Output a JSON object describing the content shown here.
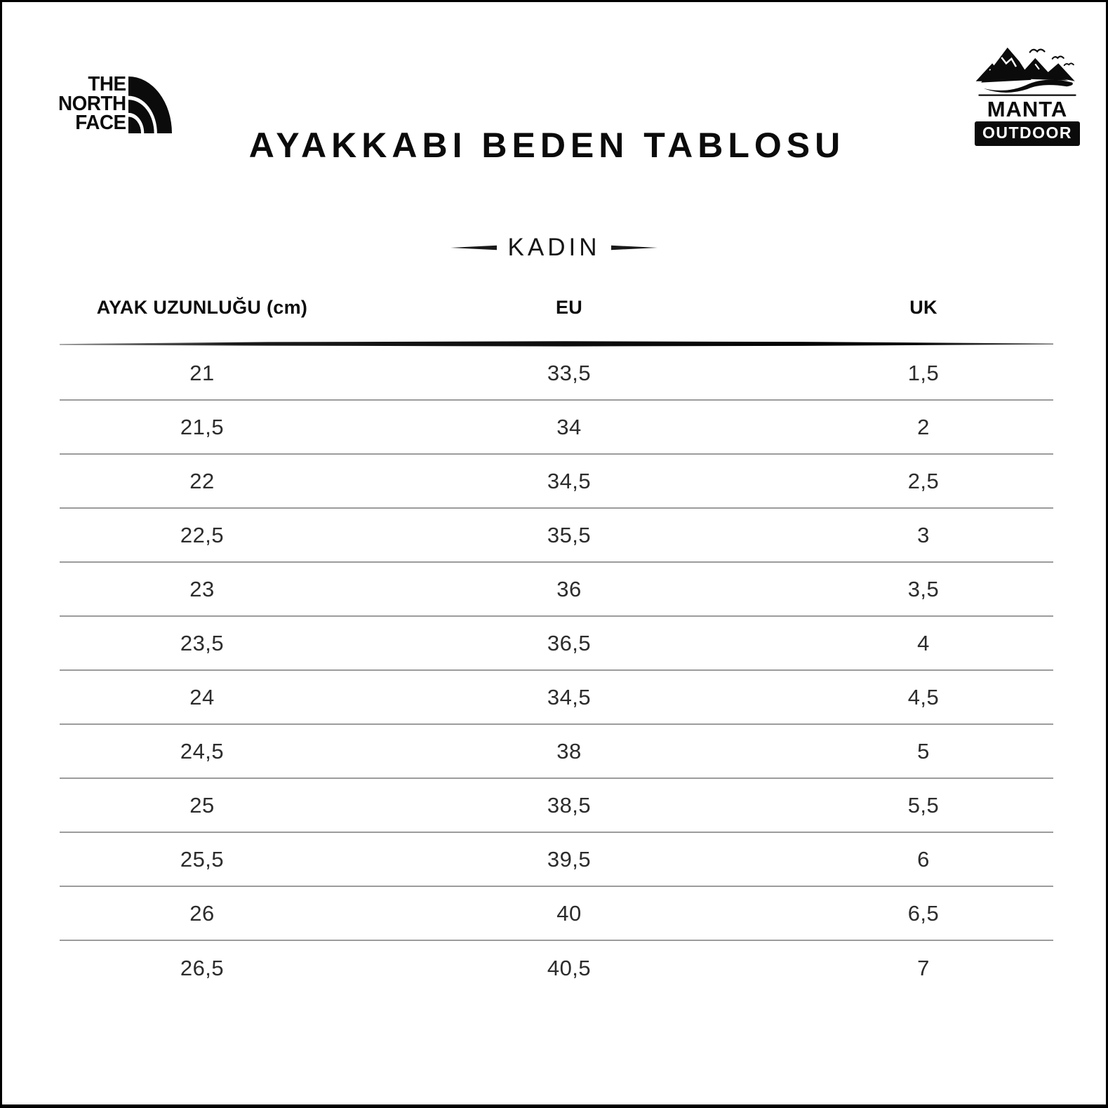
{
  "header": {
    "title": "AYAKKABI BEDEN TABLOSU",
    "north_face_logo": {
      "line1": "THE",
      "line2": "NORTH",
      "line3": "FACE"
    },
    "manta_logo": {
      "name": "MANTA",
      "subtitle": "OUTDOOR"
    }
  },
  "section": {
    "label": "KADIN"
  },
  "table": {
    "columns": [
      "AYAK UZUNLUĞU (cm)",
      "EU",
      "UK"
    ],
    "rows": [
      [
        "21",
        "33,5",
        "1,5"
      ],
      [
        "21,5",
        "34",
        "2"
      ],
      [
        "22",
        "34,5",
        "2,5"
      ],
      [
        "22,5",
        "35,5",
        "3"
      ],
      [
        "23",
        "36",
        "3,5"
      ],
      [
        "23,5",
        "36,5",
        "4"
      ],
      [
        "24",
        "34,5",
        "4,5"
      ],
      [
        "24,5",
        "38",
        "5"
      ],
      [
        "25",
        "38,5",
        "5,5"
      ],
      [
        "25,5",
        "39,5",
        "6"
      ],
      [
        "26",
        "40",
        "6,5"
      ],
      [
        "26,5",
        "40,5",
        "7"
      ]
    ]
  },
  "chart_data": {
    "type": "table",
    "title": "AYAKKABI BEDEN TABLOSU",
    "section": "KADIN",
    "columns": [
      "AYAK UZUNLUĞU (cm)",
      "EU",
      "UK"
    ],
    "rows": [
      [
        "21",
        "33,5",
        "1,5"
      ],
      [
        "21,5",
        "34",
        "2"
      ],
      [
        "22",
        "34,5",
        "2,5"
      ],
      [
        "22,5",
        "35,5",
        "3"
      ],
      [
        "23",
        "36",
        "3,5"
      ],
      [
        "23,5",
        "36,5",
        "4"
      ],
      [
        "24",
        "34,5",
        "4,5"
      ],
      [
        "24,5",
        "38",
        "5"
      ],
      [
        "25",
        "38,5",
        "5,5"
      ],
      [
        "25,5",
        "39,5",
        "6"
      ],
      [
        "26",
        "40",
        "6,5"
      ],
      [
        "26,5",
        "40,5",
        "7"
      ]
    ]
  },
  "colors": {
    "ink": "#0b0b0b",
    "row_divider": "#9c9c9c",
    "data_text": "#2c2c2c",
    "background": "#ffffff"
  }
}
